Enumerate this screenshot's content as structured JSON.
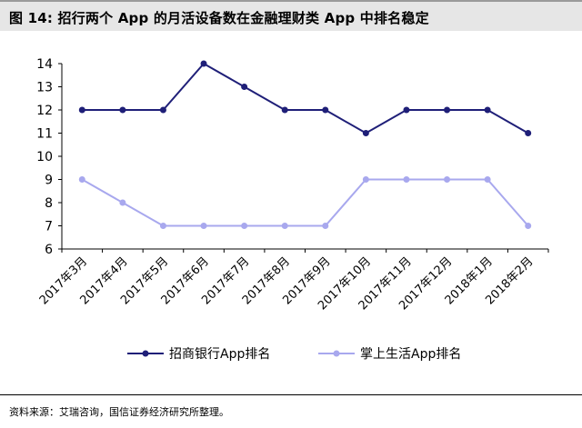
{
  "figure_title": "图 14: 招行两个 App 的月活设备数在金融理财类 App 中排名稳定",
  "source": "资料来源：艾瑞咨询，国信证券经济研究所整理。",
  "chart_data": {
    "type": "line",
    "title": "",
    "xlabel": "",
    "ylabel": "",
    "ylim": [
      6,
      14
    ],
    "yticks": [
      6,
      7,
      8,
      9,
      10,
      11,
      12,
      13,
      14
    ],
    "grid": false,
    "legend_position": "bottom",
    "categories": [
      "2017年3月",
      "2017年4月",
      "2017年5月",
      "2017年6月",
      "2017年7月",
      "2017年8月",
      "2017年9月",
      "2017年10月",
      "2017年11月",
      "2017年12月",
      "2018年1月",
      "2018年2月"
    ],
    "series": [
      {
        "name": "招商银行App排名",
        "color": "#1f1f78",
        "values": [
          12,
          12,
          12,
          14,
          13,
          12,
          12,
          11,
          12,
          12,
          12,
          11
        ]
      },
      {
        "name": "掌上生活App排名",
        "color": "#a8a8ee",
        "values": [
          9,
          8,
          7,
          7,
          7,
          7,
          7,
          9,
          9,
          9,
          9,
          7
        ]
      }
    ]
  }
}
